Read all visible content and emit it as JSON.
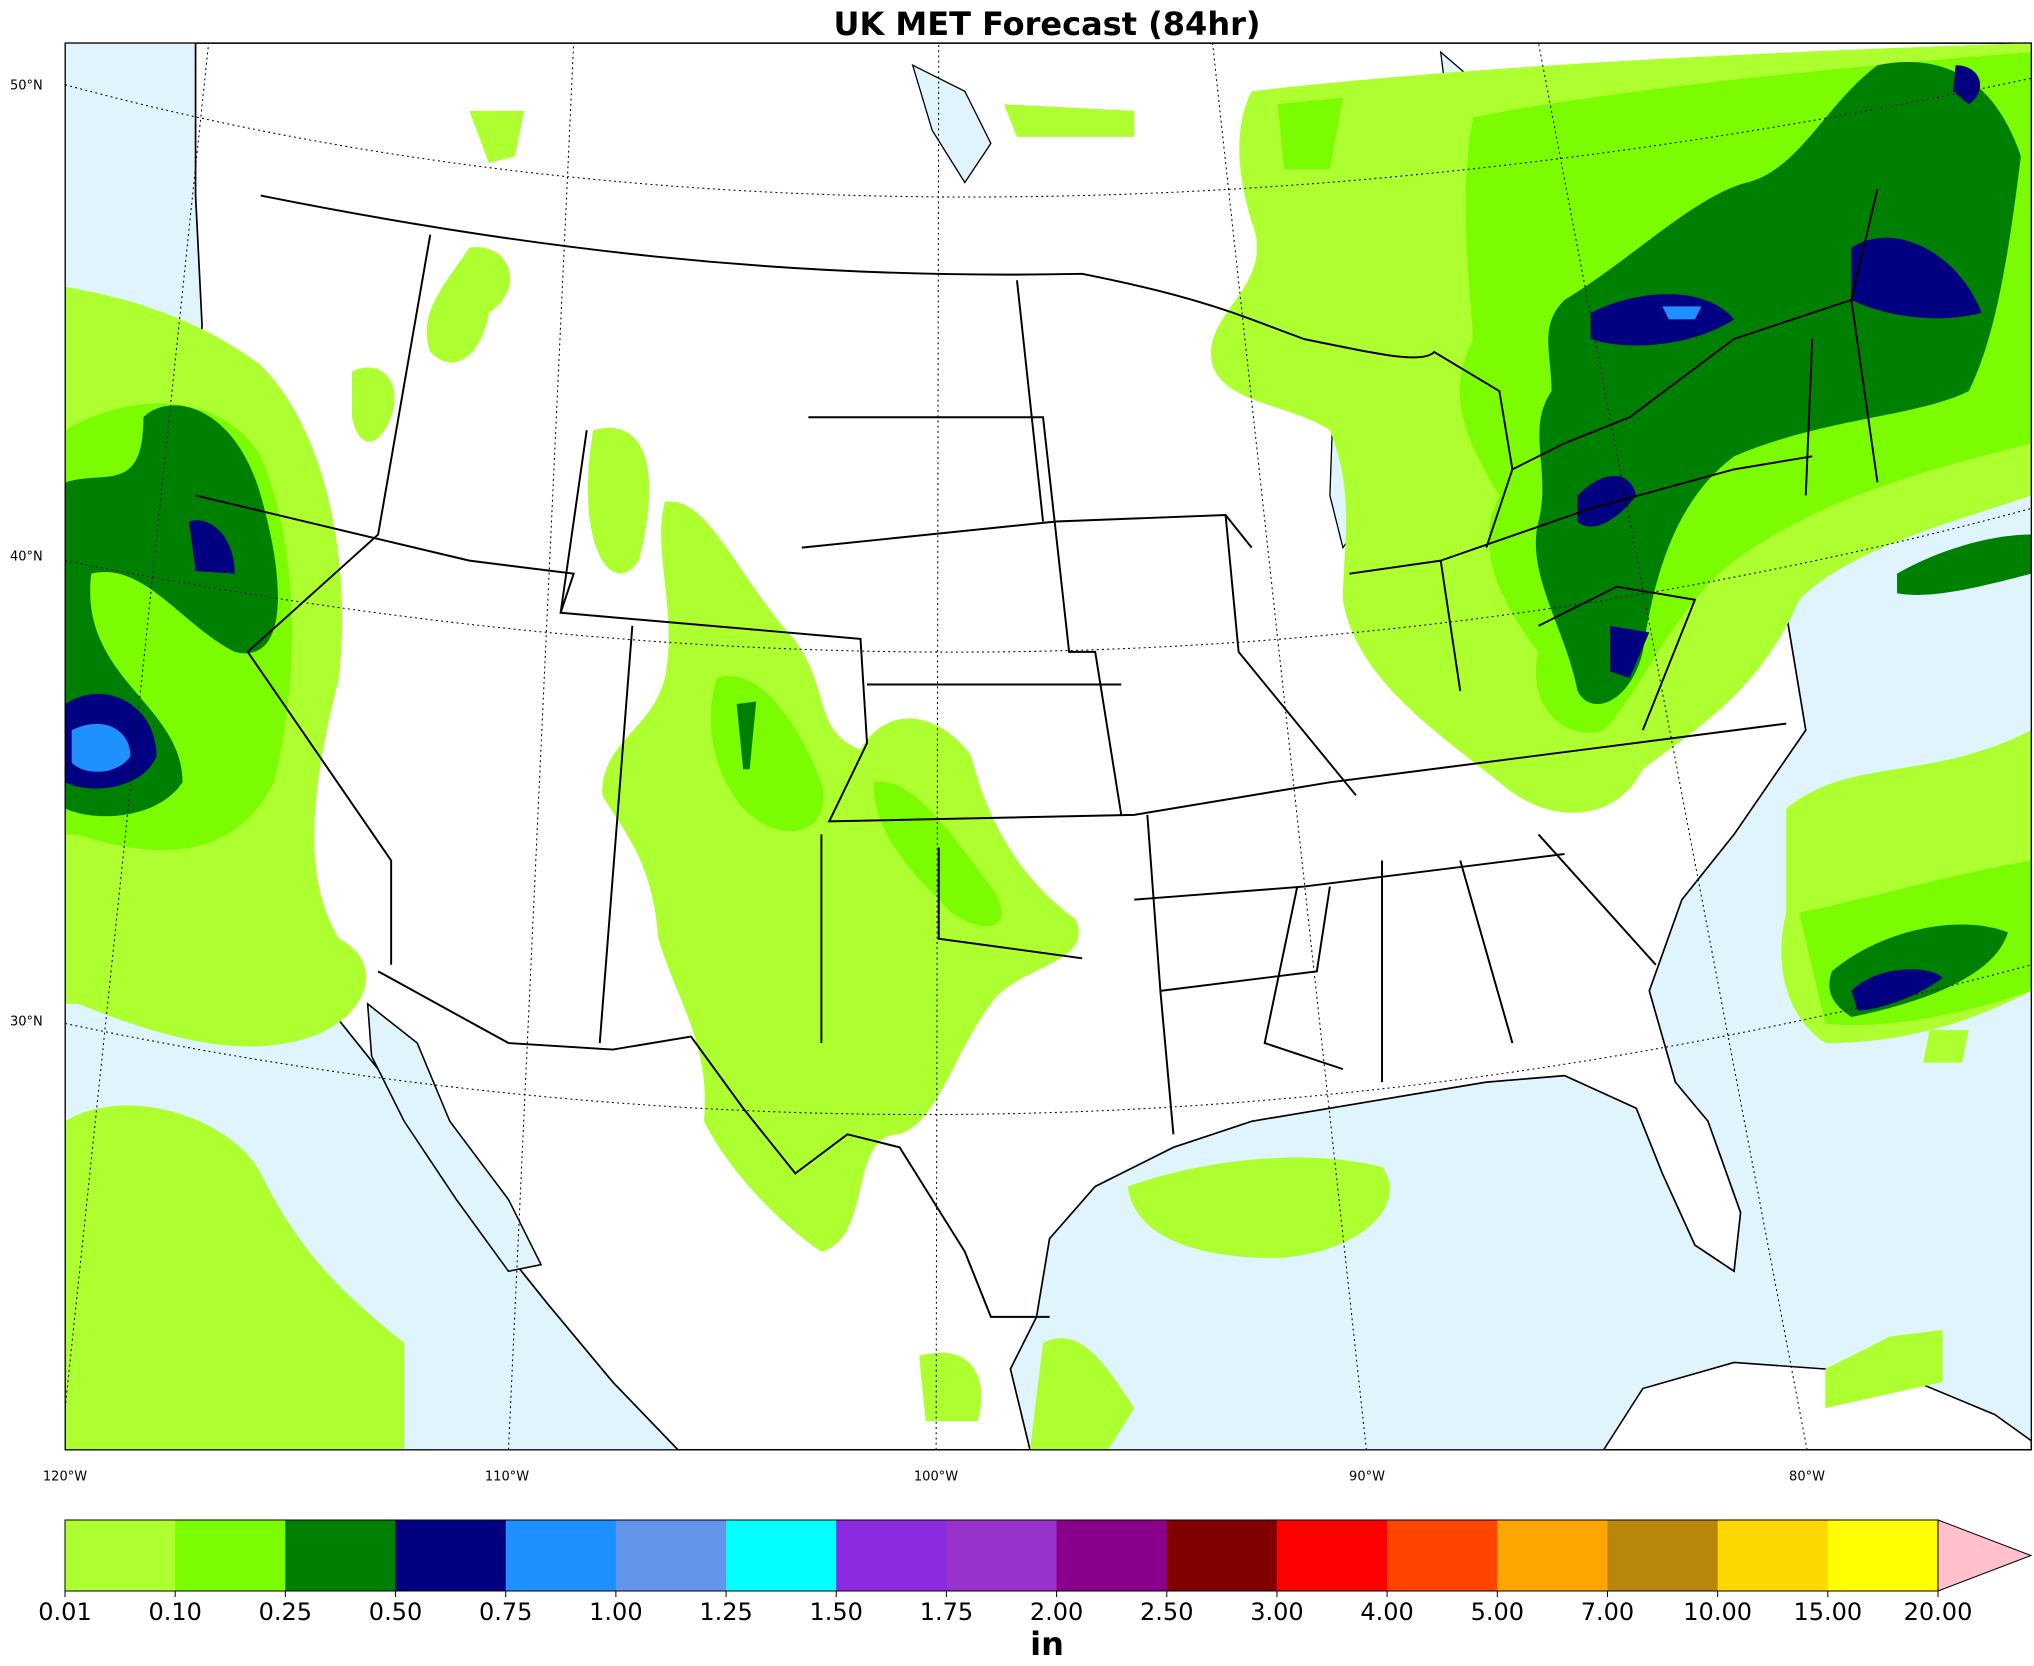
{
  "title": "UK MET Forecast (84hr)",
  "map": {
    "lat_labels": [
      "50°N",
      "40°N",
      "30°N"
    ],
    "lon_labels": [
      "120°W",
      "110°W",
      "100°W",
      "90°W",
      "80°W"
    ]
  },
  "colorbar": {
    "levels": [
      0.01,
      {
        "value": 0.1,
        "label": "0.10"
      },
      0.25,
      {
        "value": 0.5,
        "label": "0.50"
      },
      0.75,
      {
        "value": 1,
        "label": "1.00"
      },
      1.25,
      {
        "value": 1.5,
        "label": "1.50"
      },
      1.75,
      {
        "value": 2,
        "label": "2.00"
      },
      {
        "value": 2.5,
        "label": "2.50"
      },
      {
        "value": 3,
        "label": "3.00"
      },
      {
        "value": 4,
        "label": "4.00"
      },
      {
        "value": 5,
        "label": "5.00"
      },
      {
        "value": 7,
        "label": "7.00"
      },
      {
        "value": 10,
        "label": "10.00"
      },
      {
        "value": 15,
        "label": "15.00"
      },
      {
        "value": 20,
        "label": "20.00"
      }
    ],
    "colors": [
      "#adff2f",
      "#7cfc00",
      "#008000",
      "#000080",
      "#1e90ff",
      "#6495ed",
      "#00ffff",
      "#8a2be2",
      "#9932cc",
      "#8b008b",
      "#800000",
      "#ff0000",
      "#ff4500",
      "#ffa500",
      "#b8860b",
      "#ffd700",
      "#ffff00"
    ],
    "extend_color": "#ffc0cb",
    "unit": "in"
  }
}
